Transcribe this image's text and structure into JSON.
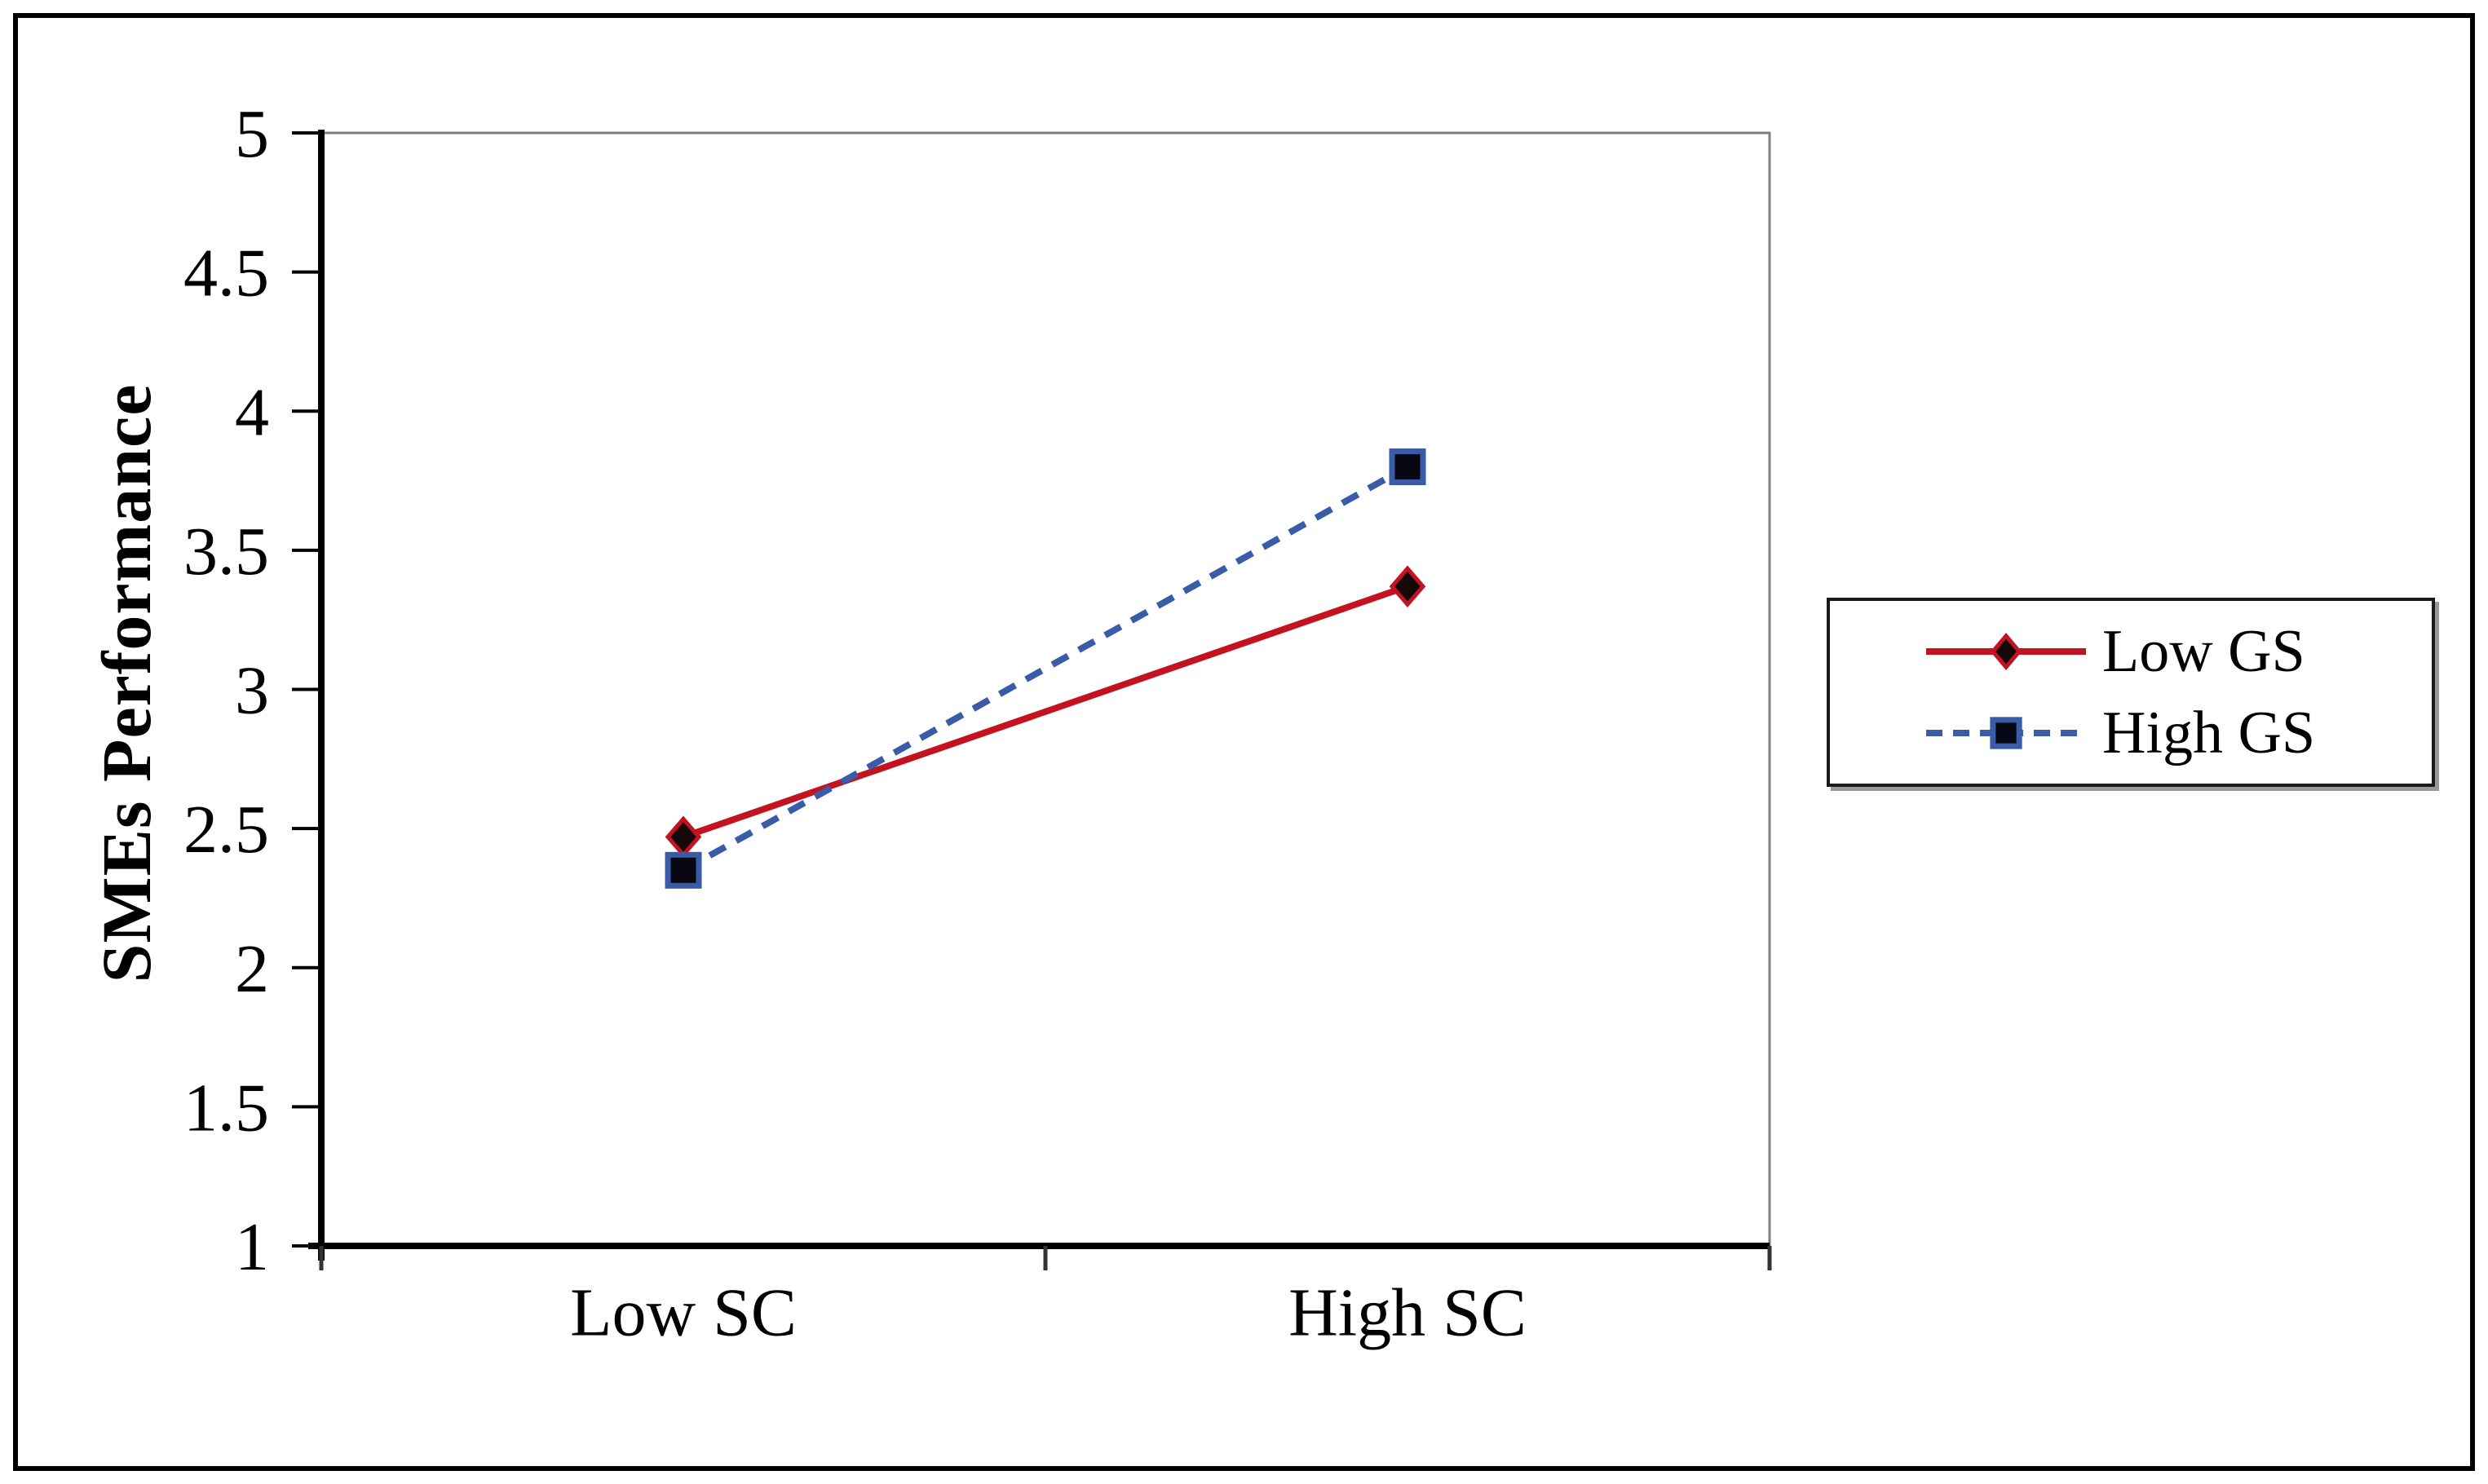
{
  "figure": {
    "background": "#ffffff",
    "border_color": "#000000"
  },
  "chart_data": {
    "type": "line",
    "title": "",
    "categories": [
      "Low SC",
      "High SC"
    ],
    "series": [
      {
        "name": "Low GS",
        "values": [
          2.47,
          3.37
        ],
        "color": "#c41320",
        "line_style": "solid",
        "marker": "diamond",
        "marker_fill": "#150808"
      },
      {
        "name": "High GS",
        "values": [
          2.35,
          3.8
        ],
        "color": "#3a5ca8",
        "line_style": "dashed",
        "marker": "square",
        "marker_fill": "#080814"
      }
    ],
    "xlabel": "",
    "ylabel": "SMEs Performance",
    "ylim": [
      1,
      5
    ],
    "ytick_step": 0.5,
    "yticks": [
      "5",
      "4.5",
      "4",
      "3.5",
      "3",
      "2.5",
      "2",
      "1.5",
      "1"
    ],
    "grid": false,
    "legend_position": "right",
    "axis_color": "#000000",
    "frame_color": "#7f7f7f",
    "tick_color": "#333333"
  }
}
